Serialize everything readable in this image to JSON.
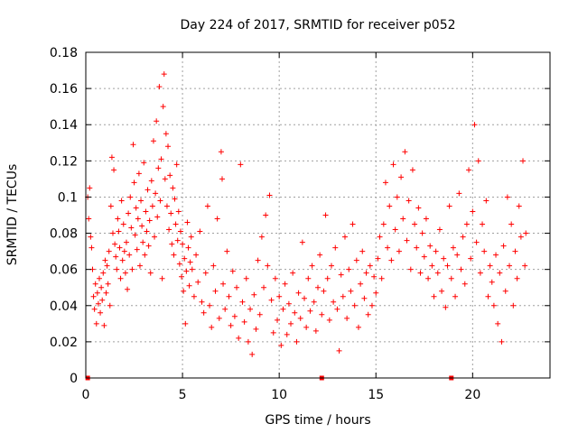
{
  "chart_data": {
    "type": "scatter",
    "title": "Day 224 of 2017, SRMTID for receiver p052",
    "xlabel": "GPS time / hours",
    "ylabel": "SRMTID / TECUs",
    "xlim": [
      0,
      24
    ],
    "ylim": [
      0,
      0.18
    ],
    "xticks": [
      0,
      5,
      10,
      15,
      20
    ],
    "xtick_labels": [
      "0",
      "5",
      "10",
      "15",
      "20"
    ],
    "yticks": [
      0,
      0.02,
      0.04,
      0.06,
      0.08,
      0.1,
      0.12,
      0.14,
      0.16,
      0.18
    ],
    "ytick_labels": [
      "0",
      "0.02",
      "0.04",
      "0.06",
      "0.08",
      "0.1",
      "0.12",
      "0.14",
      "0.16",
      "0.18"
    ],
    "grid": true,
    "marker": "plus",
    "color": "#ff0000",
    "baseline_markers_x": [
      0.1,
      12.2,
      18.9
    ],
    "series": [
      {
        "name": "SRMTID",
        "note": "representative sample of the dense point cloud",
        "points": [
          [
            0.1,
            0.1
          ],
          [
            0.15,
            0.088
          ],
          [
            0.2,
            0.105
          ],
          [
            0.25,
            0.078
          ],
          [
            0.3,
            0.072
          ],
          [
            0.35,
            0.06
          ],
          [
            0.4,
            0.045
          ],
          [
            0.45,
            0.038
          ],
          [
            0.5,
            0.052
          ],
          [
            0.55,
            0.03
          ],
          [
            0.6,
            0.047
          ],
          [
            0.65,
            0.041
          ],
          [
            0.7,
            0.055
          ],
          [
            0.75,
            0.036
          ],
          [
            0.8,
            0.05
          ],
          [
            0.85,
            0.043
          ],
          [
            0.9,
            0.058
          ],
          [
            0.95,
            0.029
          ],
          [
            1.0,
            0.065
          ],
          [
            1.05,
            0.047
          ],
          [
            1.1,
            0.062
          ],
          [
            1.15,
            0.052
          ],
          [
            1.2,
            0.07
          ],
          [
            1.25,
            0.04
          ],
          [
            1.3,
            0.095
          ],
          [
            1.35,
            0.122
          ],
          [
            1.4,
            0.08
          ],
          [
            1.45,
            0.115
          ],
          [
            1.5,
            0.074
          ],
          [
            1.55,
            0.067
          ],
          [
            1.6,
            0.06
          ],
          [
            1.65,
            0.088
          ],
          [
            1.7,
            0.081
          ],
          [
            1.75,
            0.072
          ],
          [
            1.8,
            0.055
          ],
          [
            1.85,
            0.098
          ],
          [
            1.9,
            0.065
          ],
          [
            1.95,
            0.085
          ],
          [
            2.0,
            0.07
          ],
          [
            2.05,
            0.058
          ],
          [
            2.1,
            0.075
          ],
          [
            2.15,
            0.049
          ],
          [
            2.2,
            0.091
          ],
          [
            2.25,
            0.068
          ],
          [
            2.3,
            0.1
          ],
          [
            2.35,
            0.083
          ],
          [
            2.4,
            0.06
          ],
          [
            2.45,
            0.129
          ],
          [
            2.5,
            0.108
          ],
          [
            2.55,
            0.079
          ],
          [
            2.6,
            0.094
          ],
          [
            2.65,
            0.071
          ],
          [
            2.7,
            0.088
          ],
          [
            2.75,
            0.113
          ],
          [
            2.8,
            0.062
          ],
          [
            2.85,
            0.098
          ],
          [
            2.9,
            0.084
          ],
          [
            2.95,
            0.075
          ],
          [
            3.0,
            0.119
          ],
          [
            3.05,
            0.068
          ],
          [
            3.1,
            0.092
          ],
          [
            3.15,
            0.081
          ],
          [
            3.2,
            0.104
          ],
          [
            3.25,
            0.073
          ],
          [
            3.3,
            0.087
          ],
          [
            3.35,
            0.058
          ],
          [
            3.4,
            0.109
          ],
          [
            3.45,
            0.095
          ],
          [
            3.5,
            0.131
          ],
          [
            3.55,
            0.078
          ],
          [
            3.6,
            0.102
          ],
          [
            3.65,
            0.142
          ],
          [
            3.7,
            0.089
          ],
          [
            3.75,
            0.116
          ],
          [
            3.8,
            0.161
          ],
          [
            3.85,
            0.098
          ],
          [
            3.9,
            0.121
          ],
          [
            3.95,
            0.055
          ],
          [
            4.0,
            0.15
          ],
          [
            4.05,
            0.168
          ],
          [
            4.1,
            0.11
          ],
          [
            4.15,
            0.135
          ],
          [
            4.2,
            0.095
          ],
          [
            4.25,
            0.128
          ],
          [
            4.3,
            0.082
          ],
          [
            4.35,
            0.112
          ],
          [
            4.4,
            0.091
          ],
          [
            4.45,
            0.074
          ],
          [
            4.5,
            0.105
          ],
          [
            4.55,
            0.068
          ],
          [
            4.6,
            0.099
          ],
          [
            4.65,
            0.085
          ],
          [
            4.7,
            0.118
          ],
          [
            4.75,
            0.076
          ],
          [
            4.8,
            0.092
          ],
          [
            4.85,
            0.063
          ],
          [
            4.9,
            0.081
          ],
          [
            4.95,
            0.056
          ],
          [
            5.0,
            0.074
          ],
          [
            5.05,
            0.048
          ],
          [
            5.1,
            0.066
          ],
          [
            5.15,
            0.03
          ],
          [
            5.2,
            0.059
          ],
          [
            5.25,
            0.086
          ],
          [
            5.3,
            0.072
          ],
          [
            5.35,
            0.051
          ],
          [
            5.4,
            0.064
          ],
          [
            5.45,
            0.078
          ],
          [
            5.5,
            0.06
          ],
          [
            5.6,
            0.045
          ],
          [
            5.7,
            0.068
          ],
          [
            5.8,
            0.053
          ],
          [
            5.9,
            0.081
          ],
          [
            6.0,
            0.042
          ],
          [
            6.1,
            0.036
          ],
          [
            6.2,
            0.058
          ],
          [
            6.3,
            0.095
          ],
          [
            6.4,
            0.04
          ],
          [
            6.5,
            0.028
          ],
          [
            6.6,
            0.062
          ],
          [
            6.7,
            0.048
          ],
          [
            6.8,
            0.088
          ],
          [
            6.9,
            0.033
          ],
          [
            7.0,
            0.125
          ],
          [
            7.05,
            0.11
          ],
          [
            7.1,
            0.052
          ],
          [
            7.2,
            0.038
          ],
          [
            7.3,
            0.07
          ],
          [
            7.4,
            0.045
          ],
          [
            7.5,
            0.029
          ],
          [
            7.6,
            0.059
          ],
          [
            7.7,
            0.034
          ],
          [
            7.8,
            0.05
          ],
          [
            7.9,
            0.022
          ],
          [
            8.0,
            0.118
          ],
          [
            8.1,
            0.042
          ],
          [
            8.2,
            0.031
          ],
          [
            8.3,
            0.055
          ],
          [
            8.4,
            0.02
          ],
          [
            8.5,
            0.038
          ],
          [
            8.6,
            0.013
          ],
          [
            8.7,
            0.046
          ],
          [
            8.8,
            0.027
          ],
          [
            8.9,
            0.065
          ],
          [
            9.0,
            0.035
          ],
          [
            9.1,
            0.078
          ],
          [
            9.2,
            0.05
          ],
          [
            9.3,
            0.09
          ],
          [
            9.4,
            0.062
          ],
          [
            9.5,
            0.101
          ],
          [
            9.6,
            0.043
          ],
          [
            9.7,
            0.025
          ],
          [
            9.8,
            0.055
          ],
          [
            9.9,
            0.032
          ],
          [
            10.0,
            0.045
          ],
          [
            10.1,
            0.018
          ],
          [
            10.2,
            0.038
          ],
          [
            10.3,
            0.052
          ],
          [
            10.4,
            0.024
          ],
          [
            10.5,
            0.041
          ],
          [
            10.6,
            0.03
          ],
          [
            10.7,
            0.058
          ],
          [
            10.8,
            0.036
          ],
          [
            10.9,
            0.02
          ],
          [
            11.0,
            0.047
          ],
          [
            11.1,
            0.033
          ],
          [
            11.2,
            0.075
          ],
          [
            11.3,
            0.044
          ],
          [
            11.4,
            0.028
          ],
          [
            11.5,
            0.055
          ],
          [
            11.6,
            0.037
          ],
          [
            11.7,
            0.062
          ],
          [
            11.8,
            0.042
          ],
          [
            11.9,
            0.026
          ],
          [
            12.0,
            0.05
          ],
          [
            12.1,
            0.068
          ],
          [
            12.2,
            0.035
          ],
          [
            12.3,
            0.048
          ],
          [
            12.4,
            0.09
          ],
          [
            12.5,
            0.055
          ],
          [
            12.6,
            0.032
          ],
          [
            12.7,
            0.062
          ],
          [
            12.8,
            0.042
          ],
          [
            12.9,
            0.072
          ],
          [
            13.0,
            0.038
          ],
          [
            13.1,
            0.015
          ],
          [
            13.2,
            0.057
          ],
          [
            13.3,
            0.045
          ],
          [
            13.4,
            0.078
          ],
          [
            13.5,
            0.033
          ],
          [
            13.6,
            0.06
          ],
          [
            13.7,
            0.048
          ],
          [
            13.8,
            0.085
          ],
          [
            13.9,
            0.04
          ],
          [
            14.0,
            0.065
          ],
          [
            14.1,
            0.028
          ],
          [
            14.2,
            0.052
          ],
          [
            14.3,
            0.07
          ],
          [
            14.4,
            0.044
          ],
          [
            14.5,
            0.058
          ],
          [
            14.6,
            0.035
          ],
          [
            14.7,
            0.062
          ],
          [
            14.8,
            0.04
          ],
          [
            14.9,
            0.056
          ],
          [
            15.0,
            0.047
          ],
          [
            15.1,
            0.066
          ],
          [
            15.2,
            0.078
          ],
          [
            15.3,
            0.055
          ],
          [
            15.4,
            0.085
          ],
          [
            15.5,
            0.108
          ],
          [
            15.6,
            0.072
          ],
          [
            15.7,
            0.095
          ],
          [
            15.8,
            0.065
          ],
          [
            15.9,
            0.118
          ],
          [
            16.0,
            0.082
          ],
          [
            16.1,
            0.1
          ],
          [
            16.2,
            0.07
          ],
          [
            16.3,
            0.111
          ],
          [
            16.4,
            0.088
          ],
          [
            16.5,
            0.125
          ],
          [
            16.6,
            0.076
          ],
          [
            16.7,
            0.098
          ],
          [
            16.8,
            0.06
          ],
          [
            16.9,
            0.115
          ],
          [
            17.0,
            0.085
          ],
          [
            17.1,
            0.072
          ],
          [
            17.2,
            0.094
          ],
          [
            17.3,
            0.058
          ],
          [
            17.4,
            0.08
          ],
          [
            17.5,
            0.067
          ],
          [
            17.6,
            0.088
          ],
          [
            17.7,
            0.055
          ],
          [
            17.8,
            0.073
          ],
          [
            17.9,
            0.062
          ],
          [
            18.0,
            0.045
          ],
          [
            18.1,
            0.07
          ],
          [
            18.2,
            0.058
          ],
          [
            18.3,
            0.082
          ],
          [
            18.4,
            0.048
          ],
          [
            18.5,
            0.066
          ],
          [
            18.6,
            0.039
          ],
          [
            18.7,
            0.062
          ],
          [
            18.8,
            0.095
          ],
          [
            18.9,
            0.055
          ],
          [
            19.0,
            0.072
          ],
          [
            19.1,
            0.045
          ],
          [
            19.2,
            0.068
          ],
          [
            19.3,
            0.102
          ],
          [
            19.4,
            0.06
          ],
          [
            19.5,
            0.078
          ],
          [
            19.6,
            0.052
          ],
          [
            19.7,
            0.085
          ],
          [
            19.8,
            0.115
          ],
          [
            19.9,
            0.066
          ],
          [
            20.0,
            0.092
          ],
          [
            20.1,
            0.14
          ],
          [
            20.2,
            0.075
          ],
          [
            20.3,
            0.12
          ],
          [
            20.4,
            0.058
          ],
          [
            20.5,
            0.085
          ],
          [
            20.6,
            0.07
          ],
          [
            20.7,
            0.098
          ],
          [
            20.8,
            0.045
          ],
          [
            20.9,
            0.062
          ],
          [
            21.0,
            0.053
          ],
          [
            21.1,
            0.04
          ],
          [
            21.2,
            0.068
          ],
          [
            21.3,
            0.03
          ],
          [
            21.4,
            0.058
          ],
          [
            21.5,
            0.02
          ],
          [
            21.6,
            0.073
          ],
          [
            21.7,
            0.048
          ],
          [
            21.8,
            0.1
          ],
          [
            21.9,
            0.062
          ],
          [
            22.0,
            0.085
          ],
          [
            22.1,
            0.04
          ],
          [
            22.2,
            0.07
          ],
          [
            22.3,
            0.055
          ],
          [
            22.4,
            0.095
          ],
          [
            22.5,
            0.078
          ],
          [
            22.6,
            0.12
          ],
          [
            22.7,
            0.062
          ],
          [
            22.75,
            0.08
          ]
        ]
      }
    ]
  }
}
